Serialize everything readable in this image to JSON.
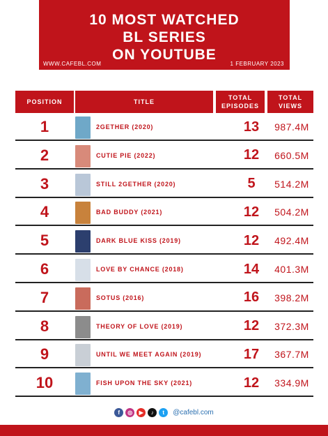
{
  "header": {
    "title": "10 MOST WATCHED\nBL SERIES\nON YOUTUBE",
    "site": "WWW.CAFEBL.COM",
    "date": "1 FEBRUARY 2023"
  },
  "columns": {
    "position": "POSITION",
    "title": "TITLE",
    "episodes": "TOTAL\nEPISODES",
    "views": "TOTAL\nVIEWS"
  },
  "rows": [
    {
      "position": "1",
      "title": "2GETHER (2020)",
      "episodes": "13",
      "views": "987.4M",
      "poster_color": "#6fa8c8"
    },
    {
      "position": "2",
      "title": "CUTIE PIE (2022)",
      "episodes": "12",
      "views": "660.5M",
      "poster_color": "#d88a7a"
    },
    {
      "position": "3",
      "title": "STILL 2GETHER (2020)",
      "episodes": "5",
      "views": "514.2M",
      "poster_color": "#b9c7d8"
    },
    {
      "position": "4",
      "title": "BAD BUDDY (2021)",
      "episodes": "12",
      "views": "504.2M",
      "poster_color": "#c8823c"
    },
    {
      "position": "5",
      "title": "DARK BLUE KISS (2019)",
      "episodes": "12",
      "views": "492.4M",
      "poster_color": "#2c3f6e"
    },
    {
      "position": "6",
      "title": "LOVE BY CHANCE (2018)",
      "episodes": "14",
      "views": "401.3M",
      "poster_color": "#d7dfe8"
    },
    {
      "position": "7",
      "title": "SOTUS (2016)",
      "episodes": "16",
      "views": "398.2M",
      "poster_color": "#c96b5c"
    },
    {
      "position": "8",
      "title": "THEORY OF LOVE (2019)",
      "episodes": "12",
      "views": "372.3M",
      "poster_color": "#8c8c8c"
    },
    {
      "position": "9",
      "title": "UNTIL WE MEET AGAIN (2019)",
      "episodes": "17",
      "views": "367.7M",
      "poster_color": "#c9cfd6"
    },
    {
      "position": "10",
      "title": "FISH UPON THE SKY (2021)",
      "episodes": "12",
      "views": "334.9M",
      "poster_color": "#7fb0d0"
    }
  ],
  "social": {
    "icons": [
      {
        "name": "facebook-icon",
        "glyph": "f",
        "color": "#3b5998"
      },
      {
        "name": "instagram-icon",
        "glyph": "◎",
        "color": "#c13584"
      },
      {
        "name": "youtube-icon",
        "glyph": "▶",
        "color": "#e52d27"
      },
      {
        "name": "tiktok-icon",
        "glyph": "♪",
        "color": "#111111"
      },
      {
        "name": "twitter-icon",
        "glyph": "t",
        "color": "#1da1f2"
      }
    ],
    "handle": "@cafebl.com"
  },
  "colors": {
    "accent": "#c0141b",
    "background": "#ffffff"
  }
}
